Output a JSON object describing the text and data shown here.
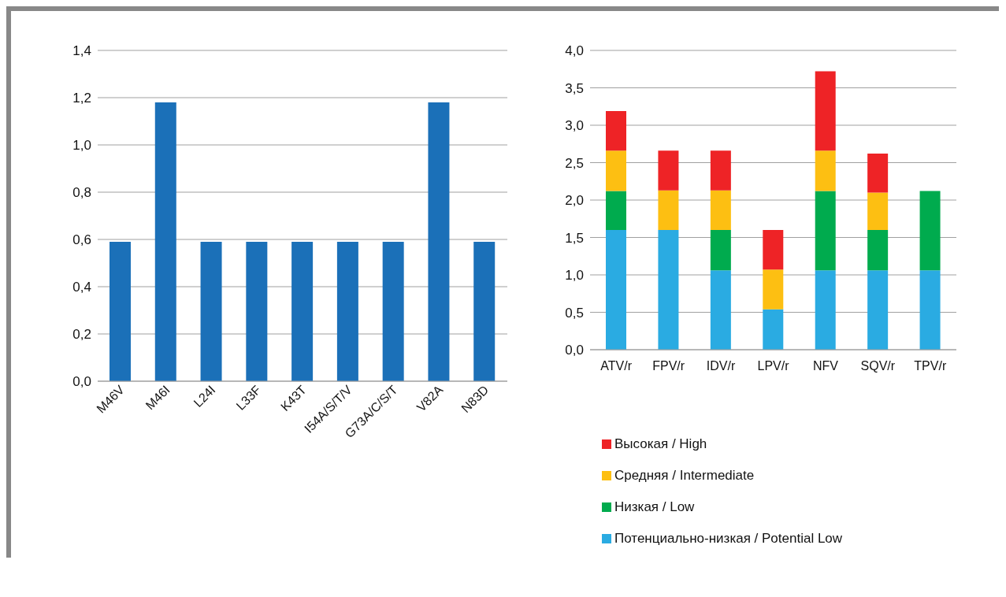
{
  "chart_data": [
    {
      "type": "bar",
      "categories": [
        "M46V",
        "M46I",
        "L24I",
        "L33F",
        "K43T",
        "I54A/S/T/V",
        "G73A/C/S/T",
        "V82A",
        "N83D"
      ],
      "values": [
        0.59,
        1.18,
        0.59,
        0.59,
        0.59,
        0.59,
        0.59,
        1.18,
        0.59
      ],
      "color": "#1b70b8",
      "ylim": [
        0,
        1.4
      ],
      "yticks": [
        {
          "value": 0,
          "label": "0,0"
        },
        {
          "value": 0.2,
          "label": "0,2"
        },
        {
          "value": 0.4,
          "label": "0,4"
        },
        {
          "value": 0.6,
          "label": "0,6"
        },
        {
          "value": 0.8,
          "label": "0,8"
        },
        {
          "value": 1.0,
          "label": "1,0"
        },
        {
          "value": 1.2,
          "label": "1,2"
        },
        {
          "value": 1.4,
          "label": "1,4"
        }
      ],
      "grid": "y"
    },
    {
      "type": "bar",
      "stacked": true,
      "categories": [
        "ATV/r",
        "FPV/r",
        "IDV/r",
        "LPV/r",
        "NFV",
        "SQV/r",
        "TPV/r"
      ],
      "series": [
        {
          "name": "Потенциально-низкая / Potential Low",
          "color": "#2aabe2",
          "values": [
            1.6,
            1.6,
            1.06,
            0.54,
            1.06,
            1.06,
            1.06
          ]
        },
        {
          "name": "Низкая / Low",
          "color": "#00ab4e",
          "values": [
            0.52,
            0,
            0.54,
            0,
            1.06,
            0.54,
            1.06
          ]
        },
        {
          "name": "Средняя / Intermediate",
          "color": "#fdbf12",
          "values": [
            0.54,
            0.53,
            0.53,
            0.53,
            0.54,
            0.5,
            0
          ]
        },
        {
          "name": "Высокая / High",
          "color": "#ee2326",
          "values": [
            0.53,
            0.53,
            0.53,
            0.53,
            1.06,
            0.52,
            0
          ]
        }
      ],
      "ylim": [
        0,
        4
      ],
      "yticks": [
        {
          "value": 0,
          "label": "0,0"
        },
        {
          "value": 0.5,
          "label": "0,5"
        },
        {
          "value": 1,
          "label": "1,0"
        },
        {
          "value": 1.5,
          "label": "1,5"
        },
        {
          "value": 2,
          "label": "2,0"
        },
        {
          "value": 2.5,
          "label": "2,5"
        },
        {
          "value": 3,
          "label": "3,0"
        },
        {
          "value": 3.5,
          "label": "3,5"
        },
        {
          "value": 4,
          "label": "4,0"
        }
      ],
      "grid": "y",
      "legend": "bottom"
    }
  ]
}
